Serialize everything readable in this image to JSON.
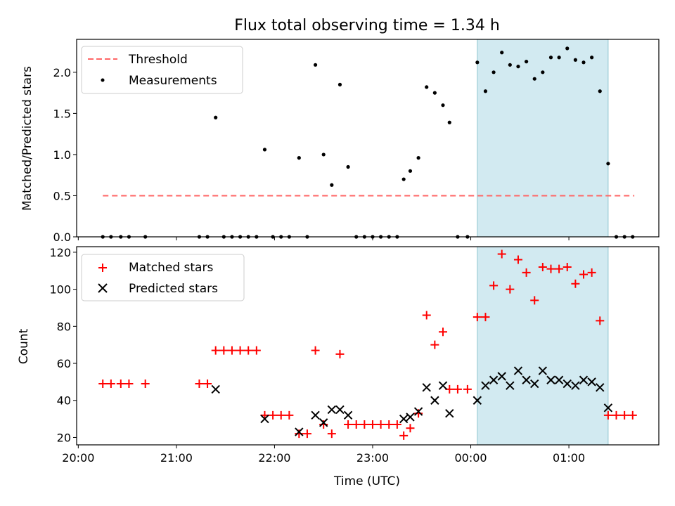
{
  "chart_data": [
    {
      "type": "scatter",
      "title": "Flux total observing time = 1.34 h",
      "xlabel": "",
      "ylabel": "Matched/Predicted stars",
      "xlim": [
        "2025-01-01T19:59",
        "2025-01-02T01:55"
      ],
      "ylim": [
        0,
        2.4
      ],
      "yticks": [
        0.0,
        0.5,
        1.0,
        1.5,
        2.0
      ],
      "ytick_labels": [
        "0.0",
        "0.5",
        "1.0",
        "1.5",
        "2.0"
      ],
      "legend": {
        "placement": "upper left",
        "entries": [
          "Threshold",
          "Measurements"
        ]
      },
      "shaded_region": {
        "x": [
          "2025-01-02T00:04",
          "2025-01-02T01:24"
        ],
        "color": "#add8e6"
      },
      "threshold": {
        "name": "Threshold",
        "y": 0.5,
        "x": [
          "2025-01-01T20:15",
          "2025-01-02T01:40"
        ],
        "color": "#ff6666",
        "style": "dashed"
      },
      "series": [
        {
          "name": "Measurements",
          "marker": "dot",
          "color": "#000000",
          "points": [
            [
              "2025-01-01T20:15",
              0.0
            ],
            [
              "2025-01-01T20:20",
              0.0
            ],
            [
              "2025-01-01T20:26",
              0.0
            ],
            [
              "2025-01-01T20:31",
              0.0
            ],
            [
              "2025-01-01T20:41",
              0.0
            ],
            [
              "2025-01-01T21:14",
              0.0
            ],
            [
              "2025-01-01T21:19",
              0.0
            ],
            [
              "2025-01-01T21:24",
              1.45
            ],
            [
              "2025-01-01T21:29",
              0.0
            ],
            [
              "2025-01-01T21:34",
              0.0
            ],
            [
              "2025-01-01T21:39",
              0.0
            ],
            [
              "2025-01-01T21:44",
              0.0
            ],
            [
              "2025-01-01T21:49",
              0.0
            ],
            [
              "2025-01-01T21:54",
              1.06
            ],
            [
              "2025-01-01T21:59",
              0.0
            ],
            [
              "2025-01-01T22:04",
              0.0
            ],
            [
              "2025-01-01T22:09",
              0.0
            ],
            [
              "2025-01-01T22:15",
              0.96
            ],
            [
              "2025-01-01T22:20",
              0.0
            ],
            [
              "2025-01-01T22:25",
              2.09
            ],
            [
              "2025-01-01T22:30",
              1.0
            ],
            [
              "2025-01-01T22:35",
              0.63
            ],
            [
              "2025-01-01T22:40",
              1.85
            ],
            [
              "2025-01-01T22:45",
              0.85
            ],
            [
              "2025-01-01T22:50",
              0.0
            ],
            [
              "2025-01-01T22:55",
              0.0
            ],
            [
              "2025-01-01T23:00",
              0.0
            ],
            [
              "2025-01-01T23:05",
              0.0
            ],
            [
              "2025-01-01T23:10",
              0.0
            ],
            [
              "2025-01-01T23:15",
              0.0
            ],
            [
              "2025-01-01T23:19",
              0.7
            ],
            [
              "2025-01-01T23:23",
              0.8
            ],
            [
              "2025-01-01T23:28",
              0.96
            ],
            [
              "2025-01-01T23:33",
              1.82
            ],
            [
              "2025-01-01T23:38",
              1.75
            ],
            [
              "2025-01-01T23:43",
              1.6
            ],
            [
              "2025-01-01T23:47",
              1.39
            ],
            [
              "2025-01-01T23:52",
              0.0
            ],
            [
              "2025-01-01T23:58",
              0.0
            ],
            [
              "2025-01-02T00:04",
              2.12
            ],
            [
              "2025-01-02T00:09",
              1.77
            ],
            [
              "2025-01-02T00:14",
              2.0
            ],
            [
              "2025-01-02T00:19",
              2.24
            ],
            [
              "2025-01-02T00:24",
              2.09
            ],
            [
              "2025-01-02T00:29",
              2.07
            ],
            [
              "2025-01-02T00:34",
              2.13
            ],
            [
              "2025-01-02T00:39",
              1.92
            ],
            [
              "2025-01-02T00:44",
              2.0
            ],
            [
              "2025-01-02T00:49",
              2.18
            ],
            [
              "2025-01-02T00:54",
              2.18
            ],
            [
              "2025-01-02T00:59",
              2.29
            ],
            [
              "2025-01-02T01:04",
              2.15
            ],
            [
              "2025-01-02T01:09",
              2.12
            ],
            [
              "2025-01-02T01:14",
              2.18
            ],
            [
              "2025-01-02T01:19",
              1.77
            ],
            [
              "2025-01-02T01:24",
              0.89
            ],
            [
              "2025-01-02T01:29",
              0.0
            ],
            [
              "2025-01-02T01:34",
              0.0
            ],
            [
              "2025-01-02T01:39",
              0.0
            ]
          ]
        }
      ]
    },
    {
      "type": "scatter",
      "title": "",
      "xlabel": "Time (UTC)",
      "ylabel": "Count",
      "xlim": [
        "2025-01-01T19:59",
        "2025-01-02T01:55"
      ],
      "ylim": [
        16,
        123
      ],
      "yticks": [
        20,
        40,
        60,
        80,
        100,
        120
      ],
      "ytick_labels": [
        "20",
        "40",
        "60",
        "80",
        "100",
        "120"
      ],
      "xticks": [
        "2025-01-01T20:00",
        "2025-01-01T21:00",
        "2025-01-01T22:00",
        "2025-01-01T23:00",
        "2025-01-02T00:00",
        "2025-01-02T01:00"
      ],
      "xtick_labels": [
        "20:00",
        "21:00",
        "22:00",
        "23:00",
        "00:00",
        "01:00"
      ],
      "legend": {
        "placement": "upper left",
        "entries": [
          "Matched stars",
          "Predicted stars"
        ]
      },
      "shaded_region": {
        "x": [
          "2025-01-02T00:04",
          "2025-01-02T01:24"
        ],
        "color": "#add8e6"
      },
      "series": [
        {
          "name": "Matched stars",
          "marker": "plus",
          "color": "#ff0000",
          "points": [
            [
              "2025-01-01T20:15",
              49
            ],
            [
              "2025-01-01T20:20",
              49
            ],
            [
              "2025-01-01T20:26",
              49
            ],
            [
              "2025-01-01T20:31",
              49
            ],
            [
              "2025-01-01T20:41",
              49
            ],
            [
              "2025-01-01T21:14",
              49
            ],
            [
              "2025-01-01T21:19",
              49
            ],
            [
              "2025-01-01T21:24",
              67
            ],
            [
              "2025-01-01T21:29",
              67
            ],
            [
              "2025-01-01T21:34",
              67
            ],
            [
              "2025-01-01T21:39",
              67
            ],
            [
              "2025-01-01T21:44",
              67
            ],
            [
              "2025-01-01T21:49",
              67
            ],
            [
              "2025-01-01T21:54",
              32
            ],
            [
              "2025-01-01T21:59",
              32
            ],
            [
              "2025-01-01T22:04",
              32
            ],
            [
              "2025-01-01T22:09",
              32
            ],
            [
              "2025-01-01T22:15",
              22
            ],
            [
              "2025-01-01T22:20",
              22
            ],
            [
              "2025-01-01T22:25",
              67
            ],
            [
              "2025-01-01T22:30",
              27
            ],
            [
              "2025-01-01T22:35",
              22
            ],
            [
              "2025-01-01T22:40",
              65
            ],
            [
              "2025-01-01T22:45",
              27
            ],
            [
              "2025-01-01T22:50",
              27
            ],
            [
              "2025-01-01T22:55",
              27
            ],
            [
              "2025-01-01T23:00",
              27
            ],
            [
              "2025-01-01T23:05",
              27
            ],
            [
              "2025-01-01T23:10",
              27
            ],
            [
              "2025-01-01T23:15",
              27
            ],
            [
              "2025-01-01T23:19",
              21
            ],
            [
              "2025-01-01T23:23",
              25
            ],
            [
              "2025-01-01T23:28",
              33
            ],
            [
              "2025-01-01T23:33",
              86
            ],
            [
              "2025-01-01T23:38",
              70
            ],
            [
              "2025-01-01T23:43",
              77
            ],
            [
              "2025-01-01T23:47",
              46
            ],
            [
              "2025-01-01T23:52",
              46
            ],
            [
              "2025-01-01T23:58",
              46
            ],
            [
              "2025-01-02T00:04",
              85
            ],
            [
              "2025-01-02T00:09",
              85
            ],
            [
              "2025-01-02T00:14",
              102
            ],
            [
              "2025-01-02T00:19",
              119
            ],
            [
              "2025-01-02T00:24",
              100
            ],
            [
              "2025-01-02T00:29",
              116
            ],
            [
              "2025-01-02T00:34",
              109
            ],
            [
              "2025-01-02T00:39",
              94
            ],
            [
              "2025-01-02T00:44",
              112
            ],
            [
              "2025-01-02T00:49",
              111
            ],
            [
              "2025-01-02T00:54",
              111
            ],
            [
              "2025-01-02T00:59",
              112
            ],
            [
              "2025-01-02T01:04",
              103
            ],
            [
              "2025-01-02T01:09",
              108
            ],
            [
              "2025-01-02T01:14",
              109
            ],
            [
              "2025-01-02T01:19",
              83
            ],
            [
              "2025-01-02T01:24",
              32
            ],
            [
              "2025-01-02T01:29",
              32
            ],
            [
              "2025-01-02T01:34",
              32
            ],
            [
              "2025-01-02T01:39",
              32
            ]
          ]
        },
        {
          "name": "Predicted stars",
          "marker": "x",
          "color": "#000000",
          "points": [
            [
              "2025-01-01T21:24",
              46
            ],
            [
              "2025-01-01T21:54",
              30
            ],
            [
              "2025-01-01T22:15",
              23
            ],
            [
              "2025-01-01T22:25",
              32
            ],
            [
              "2025-01-01T22:30",
              28
            ],
            [
              "2025-01-01T22:35",
              35
            ],
            [
              "2025-01-01T22:40",
              35
            ],
            [
              "2025-01-01T22:45",
              32
            ],
            [
              "2025-01-01T23:19",
              30
            ],
            [
              "2025-01-01T23:23",
              31
            ],
            [
              "2025-01-01T23:28",
              34
            ],
            [
              "2025-01-01T23:33",
              47
            ],
            [
              "2025-01-01T23:38",
              40
            ],
            [
              "2025-01-01T23:43",
              48
            ],
            [
              "2025-01-01T23:47",
              33
            ],
            [
              "2025-01-02T00:04",
              40
            ],
            [
              "2025-01-02T00:09",
              48
            ],
            [
              "2025-01-02T00:14",
              51
            ],
            [
              "2025-01-02T00:19",
              53
            ],
            [
              "2025-01-02T00:24",
              48
            ],
            [
              "2025-01-02T00:29",
              56
            ],
            [
              "2025-01-02T00:34",
              51
            ],
            [
              "2025-01-02T00:39",
              49
            ],
            [
              "2025-01-02T00:44",
              56
            ],
            [
              "2025-01-02T00:49",
              51
            ],
            [
              "2025-01-02T00:54",
              51
            ],
            [
              "2025-01-02T00:59",
              49
            ],
            [
              "2025-01-02T01:04",
              48
            ],
            [
              "2025-01-02T01:09",
              51
            ],
            [
              "2025-01-02T01:14",
              50
            ],
            [
              "2025-01-02T01:19",
              47
            ],
            [
              "2025-01-02T01:24",
              36
            ]
          ]
        }
      ]
    }
  ]
}
